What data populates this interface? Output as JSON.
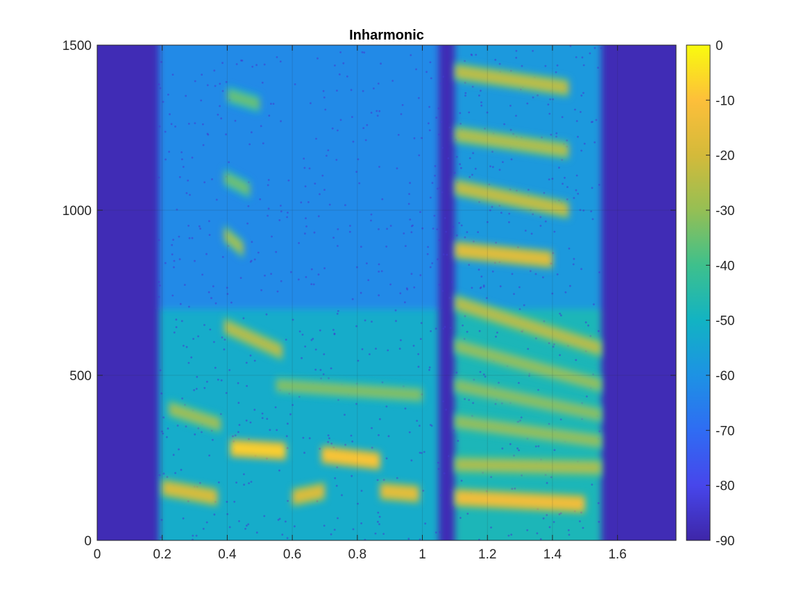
{
  "chart_data": {
    "type": "heatmap",
    "title": "Inharmonic",
    "xlabel": "",
    "ylabel": "",
    "xlim": [
      0,
      1.78
    ],
    "ylim": [
      0,
      1500
    ],
    "xticks": [
      0,
      0.2,
      0.4,
      0.6,
      0.8,
      1,
      1.2,
      1.4,
      1.6
    ],
    "xtick_labels": [
      "0",
      "0.2",
      "0.4",
      "0.6",
      "0.8",
      "1",
      "1.2",
      "1.4",
      "1.6"
    ],
    "yticks": [
      0,
      500,
      1000,
      1500
    ],
    "ytick_labels": [
      "0",
      "500",
      "1000",
      "1500"
    ],
    "grid": true,
    "colormap": "parula",
    "colorbar": {
      "limits": [
        -90,
        0
      ],
      "ticks": [
        0,
        -10,
        -20,
        -30,
        -40,
        -50,
        -60,
        -70,
        -80,
        -90
      ],
      "tick_labels": [
        "0",
        "-10",
        "-20",
        "-30",
        "-40",
        "-50",
        "-60",
        "-70",
        "-80",
        "-90"
      ]
    },
    "colormap_stops": [
      "#3e26a8",
      "#4746eb",
      "#2f6cf3",
      "#1d92e4",
      "#12b3c3",
      "#3ec08c",
      "#95bf54",
      "#d4ba3a",
      "#fdbf3a",
      "#f9fb0e"
    ],
    "background_level_db": -88,
    "regions": [
      {
        "name": "voiced segment 1",
        "t_start": 0.19,
        "t_end": 1.05,
        "base_db": -62
      },
      {
        "name": "voiced segment 2",
        "t_start": 1.1,
        "t_end": 1.55,
        "base_db": -58
      }
    ],
    "features": [
      {
        "t_start": 0.2,
        "t_end": 0.37,
        "freq_start": 160,
        "freq_end": 130,
        "level_db": -18
      },
      {
        "t_start": 0.41,
        "t_end": 0.58,
        "freq_start": 280,
        "freq_end": 270,
        "level_db": -7
      },
      {
        "t_start": 0.6,
        "t_end": 0.7,
        "freq_start": 130,
        "freq_end": 150,
        "level_db": -17
      },
      {
        "t_start": 0.69,
        "t_end": 0.87,
        "freq_start": 260,
        "freq_end": 240,
        "level_db": -9
      },
      {
        "t_start": 0.87,
        "t_end": 0.99,
        "freq_start": 150,
        "freq_end": 140,
        "level_db": -15
      },
      {
        "t_start": 0.39,
        "t_end": 0.57,
        "freq_start": 650,
        "freq_end": 570,
        "level_db": -24
      },
      {
        "t_start": 0.39,
        "t_end": 0.45,
        "freq_start": 930,
        "freq_end": 880,
        "level_db": -27
      },
      {
        "t_start": 0.39,
        "t_end": 0.47,
        "freq_start": 1100,
        "freq_end": 1060,
        "level_db": -34
      },
      {
        "t_start": 0.4,
        "t_end": 0.5,
        "freq_start": 1350,
        "freq_end": 1320,
        "level_db": -35
      },
      {
        "t_start": 0.55,
        "t_end": 1.0,
        "freq_start": 470,
        "freq_end": 440,
        "level_db": -32
      },
      {
        "t_start": 0.22,
        "t_end": 0.38,
        "freq_start": 400,
        "freq_end": 350,
        "level_db": -28
      },
      {
        "t_start": 1.1,
        "t_end": 1.5,
        "freq_start": 130,
        "freq_end": 110,
        "level_db": -12
      },
      {
        "t_start": 1.1,
        "t_end": 1.55,
        "freq_start": 230,
        "freq_end": 220,
        "level_db": -26
      },
      {
        "t_start": 1.1,
        "t_end": 1.55,
        "freq_start": 360,
        "freq_end": 300,
        "level_db": -30
      },
      {
        "t_start": 1.1,
        "t_end": 1.55,
        "freq_start": 470,
        "freq_end": 380,
        "level_db": -31
      },
      {
        "t_start": 1.1,
        "t_end": 1.55,
        "freq_start": 590,
        "freq_end": 470,
        "level_db": -30
      },
      {
        "t_start": 1.1,
        "t_end": 1.55,
        "freq_start": 720,
        "freq_end": 580,
        "level_db": -24
      },
      {
        "t_start": 1.1,
        "t_end": 1.4,
        "freq_start": 880,
        "freq_end": 850,
        "level_db": -16
      },
      {
        "t_start": 1.1,
        "t_end": 1.45,
        "freq_start": 1070,
        "freq_end": 1000,
        "level_db": -22
      },
      {
        "t_start": 1.1,
        "t_end": 1.45,
        "freq_start": 1230,
        "freq_end": 1180,
        "level_db": -25
      },
      {
        "t_start": 1.1,
        "t_end": 1.45,
        "freq_start": 1420,
        "freq_end": 1370,
        "level_db": -23
      }
    ]
  }
}
